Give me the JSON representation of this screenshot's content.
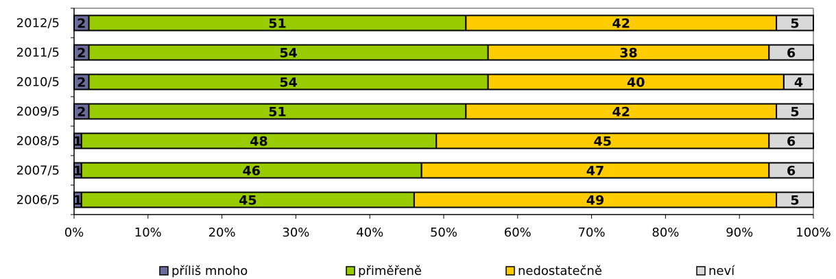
{
  "chart_data": {
    "type": "bar",
    "orientation": "horizontal",
    "stacked": "percent",
    "categories": [
      "2012/5",
      "2011/5",
      "2010/5",
      "2009/5",
      "2008/5",
      "2007/5",
      "2006/5"
    ],
    "series": [
      {
        "name": "příliš mnoho",
        "color": "#6b6b9c",
        "values": [
          2,
          2,
          2,
          2,
          1,
          1,
          1
        ]
      },
      {
        "name": "přiměřeně",
        "color": "#99cc00",
        "values": [
          51,
          54,
          54,
          51,
          48,
          46,
          45
        ]
      },
      {
        "name": "nedostatečně",
        "color": "#ffcc00",
        "values": [
          42,
          38,
          40,
          42,
          45,
          47,
          49
        ]
      },
      {
        "name": "neví",
        "color": "#d9d9d9",
        "values": [
          5,
          6,
          4,
          5,
          6,
          6,
          5
        ]
      }
    ],
    "xlim": [
      0,
      100
    ],
    "xticks": [
      "0%",
      "10%",
      "20%",
      "30%",
      "40%",
      "50%",
      "60%",
      "70%",
      "80%",
      "90%",
      "100%"
    ],
    "legend_position": "bottom",
    "grid": false,
    "data_labels": true
  }
}
